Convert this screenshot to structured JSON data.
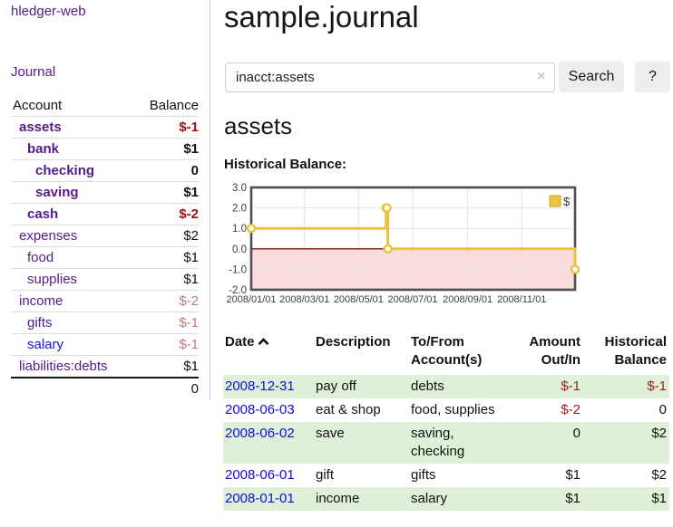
{
  "sidebar": {
    "brand": "hledger-web",
    "nav": {
      "journal_label": "Journal"
    },
    "accounts_table": {
      "headers": {
        "account": "Account",
        "balance": "Balance"
      },
      "rows": [
        {
          "name": "assets",
          "balance": "$-1",
          "depth": 0,
          "bold": true,
          "negative": "strong"
        },
        {
          "name": "bank",
          "balance": "$1",
          "depth": 1,
          "bold": true,
          "negative": null
        },
        {
          "name": "checking",
          "balance": "0",
          "depth": 2,
          "bold": true,
          "negative": null
        },
        {
          "name": "saving",
          "balance": "$1",
          "depth": 2,
          "bold": true,
          "negative": null
        },
        {
          "name": "cash",
          "balance": "$-2",
          "depth": 1,
          "bold": true,
          "negative": "strong"
        },
        {
          "name": "expenses",
          "balance": "$2",
          "depth": 0,
          "bold": false,
          "negative": null
        },
        {
          "name": "food",
          "balance": "$1",
          "depth": 1,
          "bold": false,
          "negative": null
        },
        {
          "name": "supplies",
          "balance": "$1",
          "depth": 1,
          "bold": false,
          "negative": null
        },
        {
          "name": "income",
          "balance": "$-2",
          "depth": 0,
          "bold": false,
          "negative": "muted"
        },
        {
          "name": "gifts",
          "balance": "$-1",
          "depth": 1,
          "bold": false,
          "negative": "muted"
        },
        {
          "name": "salary",
          "balance": "$-1",
          "depth": 1,
          "bold": false,
          "negative": "muted",
          "unvisited": true
        },
        {
          "name": "liabilities:debts",
          "balance": "$1",
          "depth": 0,
          "bold": false,
          "negative": null
        }
      ],
      "total": "0"
    }
  },
  "header": {
    "title": "sample.journal"
  },
  "search": {
    "value": "inacct:assets",
    "clear_icon": "×",
    "button_label": "Search",
    "help_label": "?"
  },
  "account_page": {
    "title": "assets",
    "chart_label": "Historical Balance:"
  },
  "chart_data": {
    "type": "line",
    "title": "Historical Balance",
    "step": true,
    "xlim": [
      "2008-01-01",
      "2008-12-31"
    ],
    "ylim": [
      -2,
      3
    ],
    "y_ticks": [
      "3.0",
      "2.0",
      "1.0",
      "0.0",
      "-1.0",
      "-2.0"
    ],
    "x_ticks": [
      "2008/01/01",
      "2008/03/01",
      "2008/05/01",
      "2008/07/01",
      "2008/09/01",
      "2008/11/01"
    ],
    "grid": true,
    "legend_position": "top-right",
    "series": [
      {
        "name": "$",
        "color": "#edc240",
        "points": [
          [
            "2008-01-01",
            1
          ],
          [
            "2008-06-01",
            2
          ],
          [
            "2008-06-02",
            2
          ],
          [
            "2008-06-03",
            0
          ],
          [
            "2008-12-31",
            -1
          ]
        ]
      }
    ],
    "colors": {
      "negative_region": "#fbdcdc",
      "zero_line": "#8b1111",
      "plot_border": "#4f4f4f",
      "gridline": "#e3e3e3",
      "axis_text": "#3c3c3c",
      "legend_swatch_border": "#c9a32e"
    }
  },
  "register_table": {
    "headers": {
      "date": "Date",
      "sort_icon": "chevron-up",
      "description": "Description",
      "accounts": "To/From Account(s)",
      "amount": "Amount Out/In",
      "balance": "Historical Balance"
    },
    "rows": [
      {
        "date": "2008-12-31",
        "description": "pay off",
        "accounts": "debts",
        "amount": "$-1",
        "balance": "$-1",
        "amount_negative": true,
        "balance_negative": true,
        "shade": true
      },
      {
        "date": "2008-06-03",
        "description": "eat & shop",
        "accounts": "food, supplies",
        "amount": "$-2",
        "balance": "0",
        "amount_negative": true,
        "balance_negative": false,
        "shade": false
      },
      {
        "date": "2008-06-02",
        "description": "save",
        "accounts": "saving, checking",
        "amount": "0",
        "balance": "$2",
        "amount_negative": false,
        "balance_negative": false,
        "shade": true
      },
      {
        "date": "2008-06-01",
        "description": "gift",
        "accounts": "gifts",
        "amount": "$1",
        "balance": "$2",
        "amount_negative": false,
        "balance_negative": false,
        "shade": false
      },
      {
        "date": "2008-01-01",
        "description": "income",
        "accounts": "salary",
        "amount": "$1",
        "balance": "$1",
        "amount_negative": false,
        "balance_negative": false,
        "shade": true
      }
    ]
  }
}
